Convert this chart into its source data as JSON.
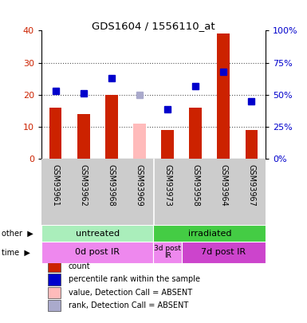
{
  "title": "GDS1604 / 1556110_at",
  "samples": [
    "GSM93961",
    "GSM93962",
    "GSM93968",
    "GSM93969",
    "GSM93973",
    "GSM93958",
    "GSM93964",
    "GSM93967"
  ],
  "bar_counts": [
    16,
    14,
    20,
    0,
    9,
    16,
    39,
    9
  ],
  "bar_absent": [
    0,
    0,
    0,
    11,
    0,
    0,
    0,
    0
  ],
  "rank_values_pct": [
    53,
    51,
    63,
    0,
    39,
    57,
    68,
    45
  ],
  "rank_absent_pct": [
    0,
    0,
    0,
    50,
    0,
    0,
    0,
    0
  ],
  "ylim_left": [
    0,
    40
  ],
  "ylim_right": [
    0,
    100
  ],
  "left_ticks": [
    0,
    10,
    20,
    30,
    40
  ],
  "right_ticks": [
    0,
    25,
    50,
    75,
    100
  ],
  "bar_color": "#cc2200",
  "bar_absent_color": "#ffbbbb",
  "rank_color": "#0000cc",
  "rank_absent_color": "#aaaacc",
  "grid_color": "#555555",
  "plot_bg": "#ffffff",
  "sample_bg": "#cccccc",
  "other_row": [
    {
      "label": "untreated",
      "start": 0,
      "end": 4,
      "color": "#aaeebb"
    },
    {
      "label": "irradiated",
      "start": 4,
      "end": 8,
      "color": "#44cc44"
    }
  ],
  "time_row": [
    {
      "label": "0d post IR",
      "start": 0,
      "end": 4,
      "color": "#ee88ee"
    },
    {
      "label": "3d post\nIR",
      "start": 4,
      "end": 5,
      "color": "#ee88ee"
    },
    {
      "label": "7d post IR",
      "start": 5,
      "end": 8,
      "color": "#cc44cc"
    }
  ],
  "legend_items": [
    {
      "color": "#cc2200",
      "label": "count"
    },
    {
      "color": "#0000cc",
      "label": "percentile rank within the sample"
    },
    {
      "color": "#ffbbbb",
      "label": "value, Detection Call = ABSENT"
    },
    {
      "color": "#aaaacc",
      "label": "rank, Detection Call = ABSENT"
    }
  ]
}
